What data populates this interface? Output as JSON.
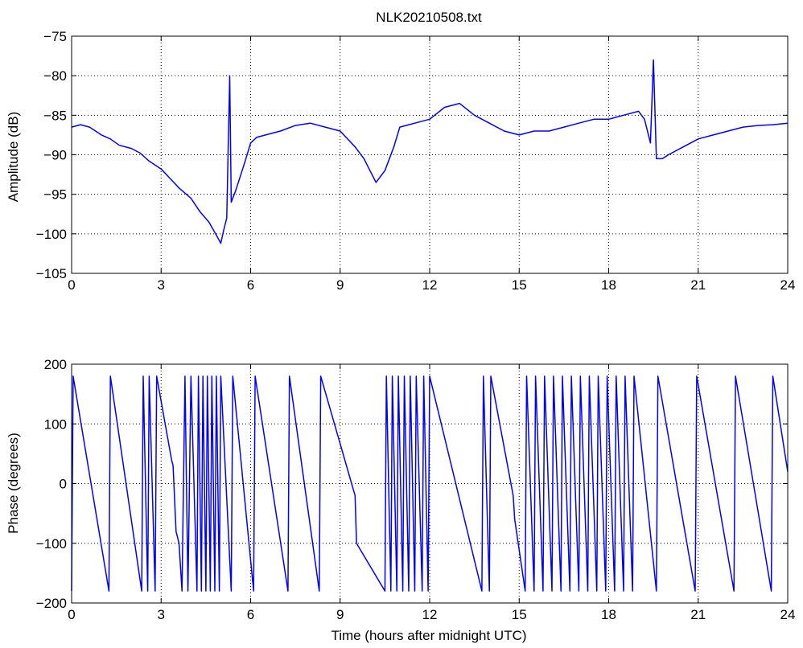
{
  "figure_title": "NLK20210508.txt",
  "chart_data": [
    {
      "type": "line",
      "title": "NLK20210508.txt",
      "xlabel": "",
      "ylabel": "Amplitude (dB)",
      "xlim": [
        0,
        24
      ],
      "ylim": [
        -105,
        -75
      ],
      "xticks": [
        0,
        3,
        6,
        9,
        12,
        15,
        18,
        21,
        24
      ],
      "yticks": [
        -75,
        -80,
        -85,
        -90,
        -95,
        -100,
        -105
      ],
      "grid": true,
      "color": "#0000ff",
      "series": [
        {
          "x": [
            0,
            0.3,
            0.6,
            1.0,
            1.3,
            1.6,
            2.0,
            2.3,
            2.6,
            3.0,
            3.3,
            3.6,
            4.0,
            4.3,
            4.6,
            4.9,
            5.0,
            5.1,
            5.2,
            5.3,
            5.35,
            5.5,
            5.8,
            6.0,
            6.2,
            6.5,
            7.0,
            7.5,
            8.0,
            8.5,
            9.0,
            9.5,
            9.8,
            10.0,
            10.2,
            10.5,
            10.8,
            11.0,
            11.5,
            12.0,
            12.5,
            13.0,
            13.5,
            14.0,
            14.5,
            15.0,
            15.5,
            16.0,
            16.5,
            17.0,
            17.5,
            18.0,
            18.5,
            19.0,
            19.2,
            19.4,
            19.5,
            19.6,
            19.8,
            20.0,
            20.5,
            21.0,
            21.5,
            22.0,
            22.5,
            23.0,
            23.5,
            24.0
          ],
          "y": [
            -86.5,
            -86.2,
            -86.5,
            -87.5,
            -88.0,
            -88.8,
            -89.2,
            -89.8,
            -90.8,
            -91.8,
            -93.0,
            -94.2,
            -95.5,
            -97.2,
            -98.5,
            -100.5,
            -101.2,
            -99.5,
            -98.0,
            -80.0,
            -96.0,
            -94.5,
            -91.0,
            -88.5,
            -87.8,
            -87.5,
            -87.0,
            -86.3,
            -86.0,
            -86.5,
            -87.0,
            -89.0,
            -90.5,
            -92.0,
            -93.5,
            -92.0,
            -89.0,
            -86.5,
            -86.0,
            -85.5,
            -84.0,
            -83.5,
            -85.0,
            -86.0,
            -87.0,
            -87.5,
            -87.0,
            -87.0,
            -86.5,
            -86.0,
            -85.5,
            -85.5,
            -85.0,
            -84.5,
            -85.5,
            -88.5,
            -78.0,
            -90.5,
            -90.5,
            -90.0,
            -89.0,
            -88.0,
            -87.5,
            -87.0,
            -86.5,
            -86.3,
            -86.2,
            -86.0
          ]
        }
      ]
    },
    {
      "type": "line",
      "title": "",
      "xlabel": "Time (hours after midnight UTC)",
      "ylabel": "Phase (degrees)",
      "xlim": [
        0,
        24
      ],
      "ylim": [
        -200,
        200
      ],
      "xticks": [
        0,
        3,
        6,
        9,
        12,
        15,
        18,
        21,
        24
      ],
      "yticks": [
        200,
        100,
        0,
        -100,
        -200
      ],
      "grid": true,
      "color": "#0000ff",
      "series": [
        {
          "x": [
            0.0,
            0.05,
            1.25,
            1.3,
            2.35,
            2.4,
            2.55,
            2.6,
            2.8,
            2.85,
            3.35,
            3.4,
            3.5,
            3.6,
            3.7,
            3.8,
            3.9,
            4.0,
            4.2,
            4.25,
            4.35,
            4.4,
            4.5,
            4.55,
            4.65,
            4.7,
            4.8,
            4.85,
            4.95,
            5.0,
            5.35,
            5.4,
            6.1,
            6.15,
            7.25,
            7.3,
            8.3,
            8.35,
            9.5,
            9.55,
            10.5,
            10.55,
            10.7,
            10.75,
            10.9,
            10.95,
            11.1,
            11.15,
            11.3,
            11.35,
            11.5,
            11.55,
            11.75,
            11.8,
            11.95,
            12.0,
            13.75,
            13.8,
            14.0,
            14.05,
            14.8,
            14.85,
            15.2,
            15.25,
            15.5,
            15.55,
            15.8,
            15.85,
            16.1,
            16.15,
            16.4,
            16.45,
            16.7,
            16.75,
            17.0,
            17.05,
            17.3,
            17.35,
            17.6,
            17.65,
            17.9,
            17.95,
            18.2,
            18.25,
            18.5,
            18.55,
            18.8,
            18.85,
            19.6,
            19.65,
            20.9,
            20.95,
            22.2,
            22.25,
            23.45,
            23.5,
            24.0
          ],
          "y": [
            -180,
            180,
            -180,
            180,
            -180,
            180,
            -180,
            180,
            -180,
            180,
            40,
            30,
            -80,
            -100,
            -180,
            180,
            -180,
            180,
            -180,
            180,
            -180,
            180,
            -180,
            180,
            -180,
            180,
            -180,
            180,
            -180,
            180,
            -180,
            180,
            -180,
            180,
            -180,
            180,
            -180,
            180,
            -20,
            -100,
            -180,
            180,
            -180,
            180,
            -180,
            180,
            -180,
            180,
            -180,
            180,
            -180,
            180,
            -180,
            180,
            -180,
            180,
            -180,
            180,
            -180,
            180,
            -20,
            -60,
            -180,
            180,
            -180,
            180,
            -180,
            180,
            -180,
            180,
            -180,
            180,
            -180,
            180,
            -180,
            180,
            -180,
            180,
            -180,
            180,
            -180,
            180,
            -180,
            180,
            -180,
            180,
            -180,
            180,
            -180,
            180,
            -180,
            180,
            -180,
            180,
            -180,
            180,
            20
          ]
        }
      ]
    }
  ]
}
